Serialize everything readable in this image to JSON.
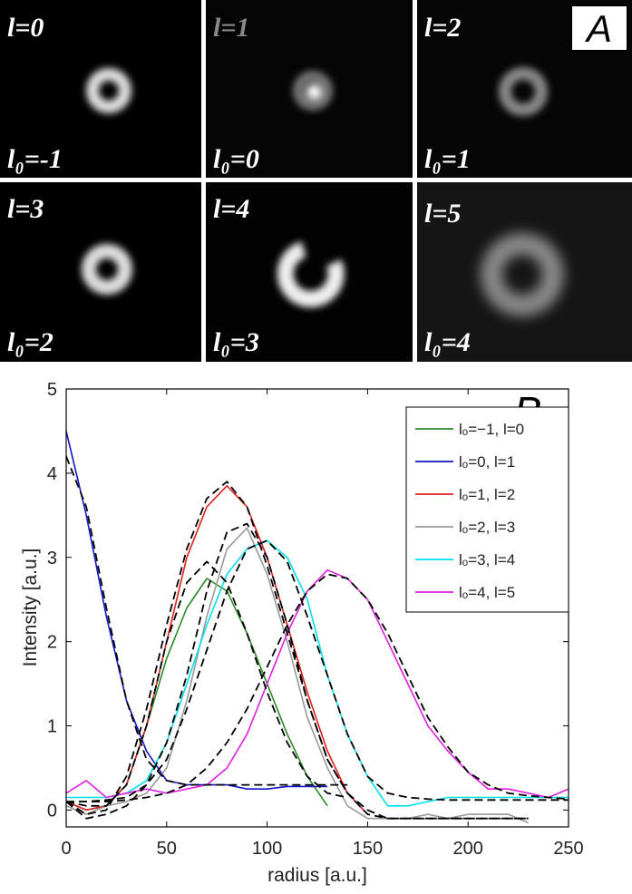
{
  "panel_a": {
    "label": "A",
    "images": [
      {
        "l": "l=0",
        "l0": "l₀=-1"
      },
      {
        "l": "l=1",
        "l0": "l₀=0"
      },
      {
        "l": "l=2",
        "l0": "l₀=1"
      },
      {
        "l": "l=3",
        "l0": "l₀=2"
      },
      {
        "l": "l=4",
        "l0": "l₀=3"
      },
      {
        "l": "l=5",
        "l0": "l₀=4"
      }
    ]
  },
  "chart_data": {
    "type": "line",
    "panel_label": "B",
    "x_label": "radius [a.u.]",
    "y_label": "Intensity [a.u.]",
    "x": [
      0,
      10,
      20,
      30,
      40,
      50,
      60,
      70,
      80,
      90,
      100,
      110,
      120,
      130,
      140,
      150,
      160,
      170,
      180,
      190,
      200,
      210,
      220,
      230,
      240,
      250
    ],
    "xlim": [
      0,
      250
    ],
    "xticks": [
      0,
      50,
      100,
      150,
      200,
      250
    ],
    "ylim": [
      -0.2,
      5
    ],
    "yticks": [
      0,
      1,
      2,
      3,
      4,
      5
    ],
    "grid": false,
    "legend": "upper right",
    "series": [
      {
        "name": "lₒ=−1,  l=0",
        "color": "#2a8a2a",
        "values": [
          0.1,
          0,
          0.05,
          0.3,
          1.0,
          1.8,
          2.4,
          2.75,
          2.6,
          2.1,
          1.5,
          0.9,
          0.4,
          0.05,
          null,
          null,
          null,
          null,
          null,
          null,
          null,
          null,
          null,
          null,
          null,
          null
        ]
      },
      {
        "name": "lₒ=0,  l=1",
        "color": "#1414c8",
        "values": [
          4.5,
          3.5,
          2.3,
          1.3,
          0.7,
          0.35,
          0.3,
          0.3,
          0.3,
          0.25,
          0.25,
          0.28,
          0.28,
          0.28,
          null,
          null,
          null,
          null,
          null,
          null,
          null,
          null,
          null,
          null,
          null,
          null
        ]
      },
      {
        "name": "lₒ=1,  l=2",
        "color": "#e01e1e",
        "values": [
          0.1,
          0,
          0.05,
          0.3,
          1.0,
          2.0,
          3.0,
          3.6,
          3.85,
          3.6,
          3.0,
          2.2,
          1.4,
          0.7,
          0.2,
          -0.05,
          null,
          null,
          null,
          null,
          null,
          null,
          null,
          null,
          null,
          null
        ]
      },
      {
        "name": "lₒ=2,  l=3",
        "color": "#999999",
        "values": [
          0.05,
          -0.05,
          0.05,
          0.1,
          0.2,
          0.5,
          1.3,
          2.3,
          3.1,
          3.35,
          2.8,
          2.0,
          1.1,
          0.5,
          0.05,
          -0.1,
          -0.1,
          -0.1,
          -0.05,
          -0.1,
          -0.05,
          -0.05,
          -0.05,
          -0.15,
          null,
          null
        ]
      },
      {
        "name": "lₒ=3,  l=4",
        "color": "#00e0ee",
        "values": [
          0.15,
          0.15,
          0.15,
          0.2,
          0.35,
          0.8,
          1.5,
          2.2,
          2.8,
          3.1,
          3.2,
          3.0,
          2.5,
          1.6,
          0.9,
          0.4,
          0.05,
          0.05,
          0.1,
          0.15,
          0.15,
          0.15,
          0.15,
          0.15,
          0.15,
          0.15
        ]
      },
      {
        "name": "lₒ=4,  l=5",
        "color": "#e020e0",
        "values": [
          0.2,
          0.35,
          0.15,
          0.2,
          0.25,
          0.2,
          0.25,
          0.3,
          0.5,
          0.9,
          1.5,
          2.1,
          2.6,
          2.85,
          2.75,
          2.5,
          2.0,
          1.5,
          1.0,
          0.7,
          0.45,
          0.25,
          0.25,
          0.2,
          0.15,
          0.25
        ]
      },
      {
        "color": "#000000",
        "dash": true,
        "values": [
          0.1,
          0.05,
          0.05,
          0.3,
          1.0,
          2.0,
          2.7,
          2.95,
          2.7,
          2.1,
          1.4,
          0.8,
          0.4,
          0.2,
          0.15,
          null,
          null,
          null,
          null,
          null,
          null,
          null,
          null,
          null,
          null,
          null
        ]
      },
      {
        "color": "#000000",
        "dash": true,
        "values": [
          4.2,
          3.6,
          2.4,
          1.3,
          0.6,
          0.35,
          0.3,
          0.3,
          0.3,
          0.3,
          0.3,
          0.3,
          0.3,
          0.3,
          0.3,
          null,
          null,
          null,
          null,
          null,
          null,
          null,
          null,
          null,
          null,
          null
        ]
      },
      {
        "color": "#000000",
        "dash": true,
        "values": [
          0.1,
          -0.05,
          0,
          0.4,
          1.2,
          2.2,
          3.1,
          3.7,
          3.9,
          3.6,
          2.9,
          2.1,
          1.3,
          0.6,
          0.2,
          0,
          -0.1,
          -0.1,
          -0.1,
          -0.1,
          -0.1,
          -0.1,
          -0.1,
          -0.1,
          null,
          null
        ]
      },
      {
        "color": "#000000",
        "dash": true,
        "values": [
          0.1,
          -0.1,
          -0.05,
          0.05,
          0.3,
          0.8,
          1.6,
          2.6,
          3.3,
          3.4,
          3.0,
          2.2,
          1.3,
          0.6,
          0.2,
          -0.05,
          -0.1,
          -0.1,
          -0.1,
          -0.1,
          -0.1,
          -0.1,
          -0.1,
          -0.1,
          null,
          null
        ]
      },
      {
        "color": "#000000",
        "dash": true,
        "values": [
          0.1,
          0.1,
          0.12,
          0.15,
          0.3,
          0.6,
          1.2,
          1.9,
          2.6,
          3.1,
          3.2,
          2.95,
          2.3,
          1.6,
          0.9,
          0.4,
          0.2,
          0.15,
          0.13,
          0.12,
          0.12,
          0.12,
          0.12,
          0.12,
          0.12,
          0.12
        ]
      },
      {
        "color": "#000000",
        "dash": true,
        "values": [
          0.1,
          0.1,
          0.1,
          0.12,
          0.15,
          0.2,
          0.3,
          0.5,
          0.8,
          1.2,
          1.7,
          2.2,
          2.6,
          2.8,
          2.75,
          2.5,
          2.1,
          1.6,
          1.1,
          0.75,
          0.45,
          0.3,
          0.2,
          0.17,
          0.15,
          0.13
        ]
      }
    ]
  }
}
